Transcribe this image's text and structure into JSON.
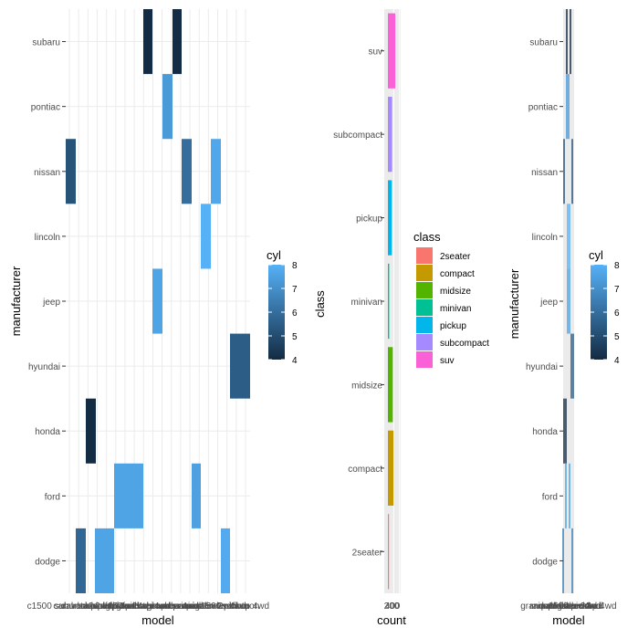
{
  "chart_data": [
    {
      "type": "heatmap",
      "id": "left",
      "xlabel": "model",
      "ylabel": "manufacturer",
      "x_tick_labels": [
        "c1500 suburban 2wd",
        "caravan 2wd",
        "civic",
        "dakota pickup 4wd",
        "durango 4wd",
        "expedition 2wd",
        "explorer 4wd",
        "f150 pickup 4wd",
        "forester awd",
        "grand cherokee 4wd",
        "grand prix",
        "impreza awd",
        "maxima",
        "mountaineer 4wd",
        "navigator 2wd",
        "pathfinder 4wd",
        "ram 1500 pickup 4wd",
        "sonata",
        "tiburon"
      ],
      "x_tick_display": "overlapping model names along the x axis",
      "categories": [
        "dodge",
        "ford",
        "honda",
        "hyundai",
        "jeep",
        "lincoln",
        "nissan",
        "pontiac",
        "subaru"
      ],
      "color_scale": {
        "name": "cyl",
        "min": 4,
        "max": 8,
        "ticks": [
          "4",
          "5",
          "6",
          "7",
          "8"
        ],
        "low": "#132B43",
        "high": "#56B1F7"
      },
      "tiles": [
        {
          "manufacturer": "subaru",
          "model": "forester awd",
          "cyl": 4
        },
        {
          "manufacturer": "subaru",
          "model": "impreza awd",
          "cyl": 4
        },
        {
          "manufacturer": "pontiac",
          "model": "grand prix",
          "cyl": 7.3
        },
        {
          "manufacturer": "nissan",
          "model": "altima",
          "cyl": 5.2
        },
        {
          "manufacturer": "nissan",
          "model": "maxima",
          "cyl": 6
        },
        {
          "manufacturer": "nissan",
          "model": "pathfinder 4wd",
          "cyl": 7.7
        },
        {
          "manufacturer": "lincoln",
          "model": "navigator 2wd",
          "cyl": 8
        },
        {
          "manufacturer": "jeep",
          "model": "grand cherokee 4wd",
          "cyl": 7.6
        },
        {
          "manufacturer": "hyundai",
          "model": "sonata / tiburon",
          "cyl": 5.5
        },
        {
          "manufacturer": "honda",
          "model": "civic",
          "cyl": 4
        },
        {
          "manufacturer": "ford",
          "model": "expedition / explorer / f150",
          "cyl": 7.6
        },
        {
          "manufacturer": "ford",
          "model": "mustang",
          "cyl": 7.5
        },
        {
          "manufacturer": "dodge",
          "model": "caravan 2wd",
          "cyl": 5.8
        },
        {
          "manufacturer": "dodge",
          "model": "dakota / durango",
          "cyl": 7.6
        },
        {
          "manufacturer": "dodge",
          "model": "ram 1500 pickup 4wd",
          "cyl": 7.8
        }
      ]
    },
    {
      "type": "bar",
      "id": "middle",
      "orientation": "horizontal",
      "xlabel": "count",
      "ylabel": "class",
      "x_tick_labels": [
        "200",
        "400"
      ],
      "categories": [
        "2seater",
        "compact",
        "midsize",
        "minivan",
        "pickup",
        "subcompact",
        "suv"
      ],
      "values": [
        5,
        47,
        41,
        11,
        33,
        35,
        62
      ],
      "colors": [
        "#F8766D",
        "#C49A00",
        "#53B400",
        "#00C094",
        "#00B6EB",
        "#A58AFF",
        "#FB61D7"
      ],
      "legend": {
        "title": "class",
        "entries": [
          "2seater",
          "compact",
          "midsize",
          "minivan",
          "pickup",
          "subcompact",
          "suv"
        ]
      }
    },
    {
      "type": "heatmap",
      "id": "right",
      "xlabel": "model",
      "ylabel": "manufacturer",
      "x_tick_display": "overlapping model names along the x axis",
      "x_tick_labels": [
        "grand cherokee 4wd",
        "impreza awd",
        "mountaineer 4wd",
        "navigator 2wd",
        "pathfinder 4wd",
        "ram 1500 pickup 4wd",
        "tiburon"
      ],
      "categories": [
        "dodge",
        "ford",
        "honda",
        "hyundai",
        "jeep",
        "lincoln",
        "nissan",
        "pontiac",
        "subaru"
      ],
      "color_scale": {
        "name": "cyl",
        "min": 4,
        "max": 8,
        "ticks": [
          "4",
          "5",
          "6",
          "7",
          "8"
        ],
        "low": "#132B43",
        "high": "#56B1F7"
      },
      "tiles": [
        {
          "manufacturer": "subaru",
          "cyl": 4
        },
        {
          "manufacturer": "pontiac",
          "cyl": 7.3
        },
        {
          "manufacturer": "nissan",
          "cyl": 5.2
        },
        {
          "manufacturer": "lincoln",
          "cyl": 8
        },
        {
          "manufacturer": "jeep",
          "cyl": 7.6
        },
        {
          "manufacturer": "hyundai",
          "cyl": 5.5
        },
        {
          "manufacturer": "honda",
          "cyl": 4
        },
        {
          "manufacturer": "ford",
          "cyl": 7.6
        },
        {
          "manufacturer": "dodge",
          "cyl": 6.5
        }
      ]
    }
  ]
}
